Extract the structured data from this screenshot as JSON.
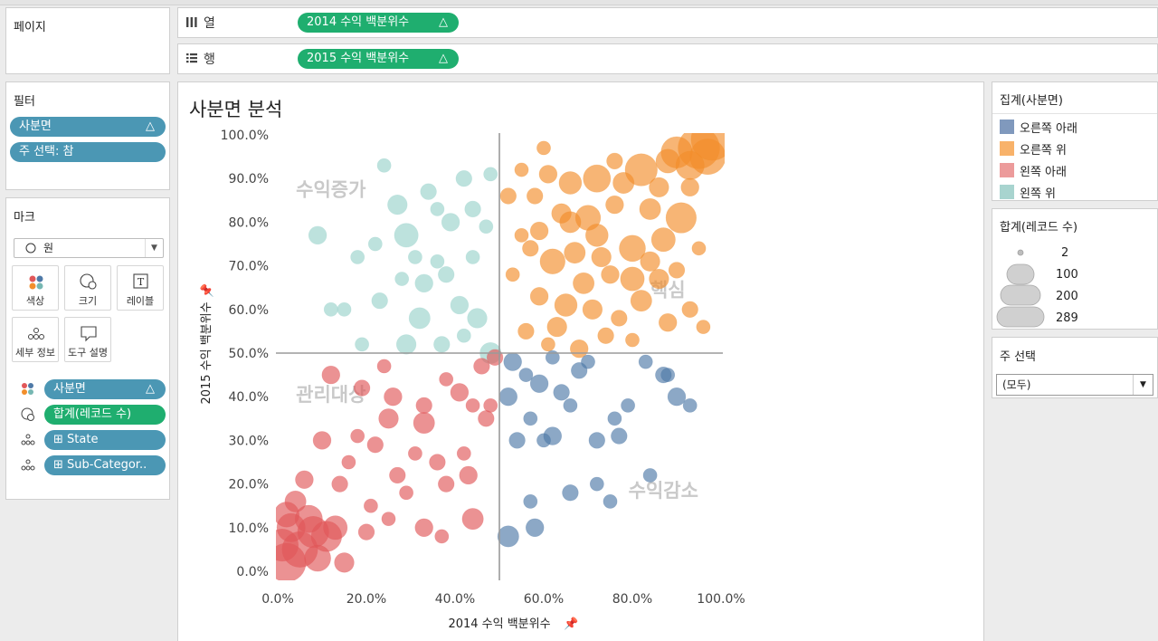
{
  "pages_panel": {
    "title": "페이지"
  },
  "columns_shelf": {
    "label": "열",
    "pill": "2014 수익 백분위수",
    "pill_mark": "△"
  },
  "rows_shelf": {
    "label": "행",
    "pill": "2015 수익 백분위수",
    "pill_mark": "△"
  },
  "filters_panel": {
    "title": "필터",
    "pills": [
      {
        "label": "사분면",
        "mark": "△"
      },
      {
        "label": "주 선택: 참",
        "mark": ""
      }
    ]
  },
  "marks_panel": {
    "title": "마크",
    "mark_type": "원",
    "buttons": [
      {
        "label": "색상",
        "icon": "color-icon"
      },
      {
        "label": "크기",
        "icon": "size-icon"
      },
      {
        "label": "레이블",
        "icon": "label-icon"
      },
      {
        "label": "세부 정보",
        "icon": "detail-icon"
      },
      {
        "label": "도구 설명",
        "icon": "tooltip-icon"
      }
    ],
    "fields": [
      {
        "label": "사분면",
        "mark": "△",
        "color": "blue",
        "icon": "color-icon"
      },
      {
        "label": "합계(레코드 수)",
        "mark": "",
        "color": "green",
        "icon": "size-icon"
      },
      {
        "label": "⊞ State",
        "mark": "",
        "color": "blue",
        "icon": "detail-icon"
      },
      {
        "label": "⊞ Sub-Categor..",
        "mark": "",
        "color": "blue",
        "icon": "detail-icon"
      }
    ]
  },
  "color_legend": {
    "title": "집계(사분면)",
    "items": [
      {
        "label": "오른쪽 아래",
        "color": "#8099bd"
      },
      {
        "label": "오른쪽 위",
        "color": "#f8b26a"
      },
      {
        "label": "왼쪽 아래",
        "color": "#ec9b9b"
      },
      {
        "label": "왼쪽 위",
        "color": "#a8d4cf"
      }
    ]
  },
  "size_legend": {
    "title": "합계(레코드 수)",
    "items": [
      "2",
      "100",
      "200",
      "289"
    ]
  },
  "main_select": {
    "title": "주 선택",
    "value": "(모두)"
  },
  "chart_data": {
    "type": "scatter",
    "title": "사분면 분석",
    "xlabel": "2014 수익 백분위수",
    "ylabel": "2015 수익 백분위수",
    "xlim": [
      0,
      1
    ],
    "ylim": [
      0,
      1
    ],
    "x_ticks": [
      "0.0%",
      "20.0%",
      "40.0%",
      "60.0%",
      "80.0%",
      "100.0%"
    ],
    "y_ticks": [
      "0.0%",
      "10.0%",
      "20.0%",
      "30.0%",
      "40.0%",
      "50.0%",
      "60.0%",
      "70.0%",
      "80.0%",
      "90.0%",
      "100.0%"
    ],
    "reference_lines": {
      "x": 0.5,
      "y": 0.5
    },
    "annotations": [
      {
        "text": "수익증가",
        "x": 0.12,
        "y": 0.86
      },
      {
        "text": "핵심",
        "x": 0.88,
        "y": 0.63
      },
      {
        "text": "관리대상",
        "x": 0.12,
        "y": 0.39
      },
      {
        "text": "수익감소",
        "x": 0.87,
        "y": 0.17
      }
    ],
    "series": [
      {
        "name": "오른쪽 위",
        "color": "#f28e2b",
        "points": [
          [
            0.95,
            0.97,
            280
          ],
          [
            0.9,
            0.96,
            150
          ],
          [
            0.97,
            0.95,
            200
          ],
          [
            0.93,
            0.93,
            120
          ],
          [
            0.88,
            0.94,
            80
          ],
          [
            0.82,
            0.92,
            160
          ],
          [
            0.78,
            0.89,
            60
          ],
          [
            0.72,
            0.9,
            110
          ],
          [
            0.66,
            0.89,
            70
          ],
          [
            0.61,
            0.91,
            40
          ],
          [
            0.55,
            0.92,
            20
          ],
          [
            0.58,
            0.86,
            30
          ],
          [
            0.64,
            0.82,
            50
          ],
          [
            0.7,
            0.81,
            90
          ],
          [
            0.76,
            0.84,
            40
          ],
          [
            0.84,
            0.83,
            60
          ],
          [
            0.91,
            0.81,
            140
          ],
          [
            0.87,
            0.76,
            80
          ],
          [
            0.8,
            0.74,
            100
          ],
          [
            0.73,
            0.72,
            50
          ],
          [
            0.67,
            0.73,
            60
          ],
          [
            0.62,
            0.71,
            90
          ],
          [
            0.57,
            0.74,
            30
          ],
          [
            0.53,
            0.68,
            20
          ],
          [
            0.59,
            0.63,
            40
          ],
          [
            0.65,
            0.61,
            70
          ],
          [
            0.71,
            0.6,
            50
          ],
          [
            0.77,
            0.58,
            30
          ],
          [
            0.82,
            0.62,
            60
          ],
          [
            0.88,
            0.57,
            40
          ],
          [
            0.93,
            0.6,
            30
          ],
          [
            0.96,
            0.56,
            20
          ],
          [
            0.56,
            0.55,
            30
          ],
          [
            0.61,
            0.52,
            20
          ],
          [
            0.68,
            0.51,
            40
          ],
          [
            0.74,
            0.54,
            30
          ],
          [
            0.8,
            0.53,
            20
          ],
          [
            0.63,
            0.56,
            50
          ],
          [
            0.69,
            0.66,
            60
          ],
          [
            0.75,
            0.68,
            40
          ],
          [
            0.84,
            0.71,
            50
          ],
          [
            0.9,
            0.69,
            30
          ],
          [
            0.95,
            0.74,
            20
          ],
          [
            0.59,
            0.78,
            40
          ],
          [
            0.66,
            0.8,
            60
          ],
          [
            0.52,
            0.86,
            30
          ],
          [
            0.86,
            0.88,
            50
          ],
          [
            0.93,
            0.88,
            40
          ],
          [
            0.98,
            0.99,
            289
          ],
          [
            0.55,
            0.77,
            20
          ],
          [
            0.72,
            0.77,
            70
          ],
          [
            0.8,
            0.67,
            80
          ],
          [
            0.86,
            0.67,
            50
          ],
          [
            0.76,
            0.94,
            30
          ],
          [
            0.6,
            0.97,
            20
          ]
        ]
      },
      {
        "name": "왼쪽 위",
        "color": "#99d2cb",
        "points": [
          [
            0.09,
            0.77,
            40
          ],
          [
            0.29,
            0.77,
            80
          ],
          [
            0.39,
            0.8,
            40
          ],
          [
            0.27,
            0.84,
            50
          ],
          [
            0.42,
            0.9,
            30
          ],
          [
            0.36,
            0.83,
            20
          ],
          [
            0.44,
            0.83,
            30
          ],
          [
            0.48,
            0.91,
            20
          ],
          [
            0.24,
            0.93,
            20
          ],
          [
            0.34,
            0.87,
            30
          ],
          [
            0.18,
            0.72,
            20
          ],
          [
            0.31,
            0.72,
            20
          ],
          [
            0.38,
            0.68,
            30
          ],
          [
            0.33,
            0.66,
            40
          ],
          [
            0.28,
            0.67,
            20
          ],
          [
            0.41,
            0.61,
            40
          ],
          [
            0.45,
            0.58,
            50
          ],
          [
            0.32,
            0.58,
            60
          ],
          [
            0.23,
            0.62,
            30
          ],
          [
            0.15,
            0.6,
            20
          ],
          [
            0.12,
            0.6,
            20
          ],
          [
            0.29,
            0.52,
            50
          ],
          [
            0.37,
            0.52,
            30
          ],
          [
            0.42,
            0.54,
            20
          ],
          [
            0.48,
            0.5,
            60
          ],
          [
            0.19,
            0.52,
            20
          ],
          [
            0.22,
            0.75,
            20
          ],
          [
            0.36,
            0.71,
            20
          ],
          [
            0.44,
            0.72,
            20
          ],
          [
            0.47,
            0.79,
            20
          ]
        ]
      },
      {
        "name": "왼쪽 아래",
        "color": "#e15759",
        "points": [
          [
            0.02,
            0.02,
            240
          ],
          [
            0.05,
            0.05,
            200
          ],
          [
            0.01,
            0.06,
            160
          ],
          [
            0.08,
            0.09,
            150
          ],
          [
            0.03,
            0.1,
            120
          ],
          [
            0.11,
            0.08,
            140
          ],
          [
            0.07,
            0.12,
            110
          ],
          [
            0.02,
            0.13,
            90
          ],
          [
            0.09,
            0.03,
            100
          ],
          [
            0.13,
            0.1,
            80
          ],
          [
            0.04,
            0.16,
            60
          ],
          [
            0.15,
            0.02,
            50
          ],
          [
            0.12,
            0.45,
            40
          ],
          [
            0.19,
            0.42,
            30
          ],
          [
            0.26,
            0.4,
            40
          ],
          [
            0.33,
            0.38,
            30
          ],
          [
            0.41,
            0.41,
            40
          ],
          [
            0.46,
            0.47,
            30
          ],
          [
            0.48,
            0.38,
            20
          ],
          [
            0.25,
            0.35,
            50
          ],
          [
            0.33,
            0.34,
            60
          ],
          [
            0.18,
            0.31,
            20
          ],
          [
            0.1,
            0.3,
            40
          ],
          [
            0.22,
            0.29,
            30
          ],
          [
            0.31,
            0.27,
            20
          ],
          [
            0.36,
            0.25,
            30
          ],
          [
            0.43,
            0.22,
            40
          ],
          [
            0.38,
            0.2,
            30
          ],
          [
            0.29,
            0.18,
            20
          ],
          [
            0.21,
            0.15,
            20
          ],
          [
            0.14,
            0.2,
            30
          ],
          [
            0.06,
            0.21,
            40
          ],
          [
            0.25,
            0.12,
            20
          ],
          [
            0.33,
            0.1,
            40
          ],
          [
            0.44,
            0.12,
            60
          ],
          [
            0.47,
            0.35,
            30
          ],
          [
            0.38,
            0.44,
            20
          ],
          [
            0.44,
            0.38,
            20
          ],
          [
            0.49,
            0.49,
            30
          ],
          [
            0.24,
            0.47,
            20
          ],
          [
            0.16,
            0.25,
            20
          ],
          [
            0.42,
            0.27,
            20
          ],
          [
            0.27,
            0.22,
            30
          ],
          [
            0.2,
            0.09,
            30
          ],
          [
            0.37,
            0.08,
            20
          ]
        ]
      },
      {
        "name": "오른쪽 아래",
        "color": "#4e79a7",
        "points": [
          [
            0.52,
            0.08,
            60
          ],
          [
            0.58,
            0.1,
            40
          ],
          [
            0.54,
            0.3,
            30
          ],
          [
            0.52,
            0.4,
            40
          ],
          [
            0.56,
            0.45,
            20
          ],
          [
            0.59,
            0.43,
            40
          ],
          [
            0.64,
            0.41,
            30
          ],
          [
            0.66,
            0.38,
            20
          ],
          [
            0.62,
            0.31,
            40
          ],
          [
            0.7,
            0.48,
            20
          ],
          [
            0.72,
            0.3,
            30
          ],
          [
            0.76,
            0.35,
            20
          ],
          [
            0.77,
            0.31,
            30
          ],
          [
            0.79,
            0.38,
            20
          ],
          [
            0.83,
            0.48,
            20
          ],
          [
            0.87,
            0.45,
            30
          ],
          [
            0.9,
            0.4,
            40
          ],
          [
            0.93,
            0.38,
            20
          ],
          [
            0.53,
            0.48,
            40
          ],
          [
            0.57,
            0.35,
            20
          ],
          [
            0.66,
            0.18,
            30
          ],
          [
            0.57,
            0.16,
            20
          ],
          [
            0.6,
            0.3,
            20
          ],
          [
            0.75,
            0.16,
            20
          ],
          [
            0.84,
            0.22,
            20
          ],
          [
            0.68,
            0.46,
            30
          ],
          [
            0.62,
            0.49,
            20
          ],
          [
            0.72,
            0.2,
            20
          ],
          [
            0.88,
            0.45,
            20
          ]
        ]
      }
    ]
  }
}
